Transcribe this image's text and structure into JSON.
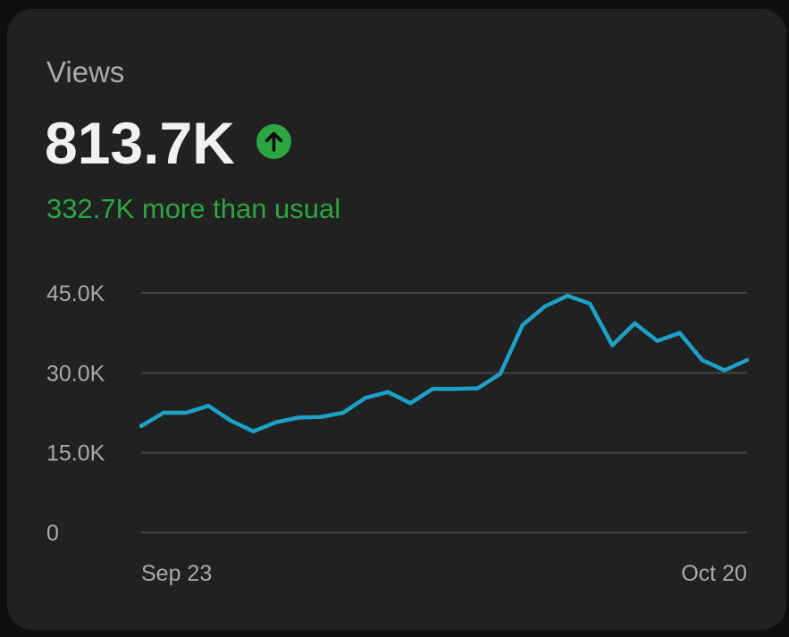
{
  "header": {
    "label": "Views",
    "value": "813.7K",
    "comparison": "332.7K more than usual"
  },
  "icons": {
    "trend": "arrow-up-icon"
  },
  "colors": {
    "background": "#0f0f0f",
    "card": "#212121",
    "line": "#1ea1c7",
    "positive": "#2ba640",
    "grid": "#444444",
    "label": "#aaaaaa",
    "value": "#f1f1f1"
  },
  "chart_data": {
    "type": "line",
    "x": [
      "Sep 23",
      "Sep 24",
      "Sep 25",
      "Sep 26",
      "Sep 27",
      "Sep 28",
      "Sep 29",
      "Sep 30",
      "Oct 1",
      "Oct 2",
      "Oct 3",
      "Oct 4",
      "Oct 5",
      "Oct 6",
      "Oct 7",
      "Oct 8",
      "Oct 9",
      "Oct 10",
      "Oct 11",
      "Oct 12",
      "Oct 13",
      "Oct 14",
      "Oct 15",
      "Oct 16",
      "Oct 17",
      "Oct 18",
      "Oct 19",
      "Oct 20"
    ],
    "series": [
      {
        "values": [
          20000,
          22500,
          22500,
          23800,
          21000,
          19000,
          20700,
          21600,
          21700,
          22500,
          25300,
          26400,
          24300,
          27000,
          27000,
          27100,
          29800,
          39000,
          42500,
          44500,
          43000,
          35200,
          39300,
          36000,
          37500,
          32400,
          30500,
          32400
        ]
      }
    ],
    "x_tick_labels": [
      "Sep 23",
      "Oct 20"
    ],
    "y_ticks": [
      0,
      15000,
      30000,
      45000
    ],
    "y_tick_labels": [
      "0",
      "15.0K",
      "30.0K",
      "45.0K"
    ],
    "ylim": [
      0,
      45000
    ],
    "grid": true,
    "title": "",
    "xlabel": "",
    "ylabel": ""
  }
}
